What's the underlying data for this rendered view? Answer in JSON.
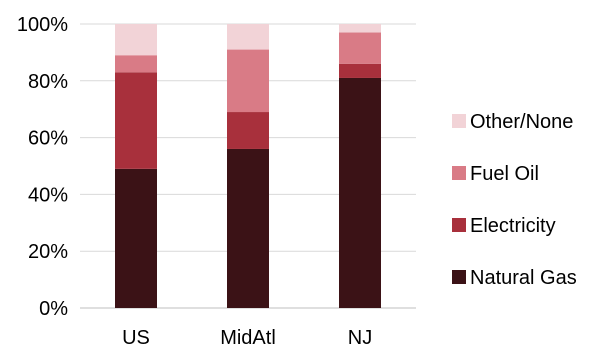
{
  "chart_data": {
    "type": "bar",
    "stacked": true,
    "categories": [
      "US",
      "MidAtl",
      "NJ"
    ],
    "series": [
      {
        "name": "Natural Gas",
        "values": [
          49,
          56,
          81
        ],
        "color": "#3b1216"
      },
      {
        "name": "Electricity",
        "values": [
          34,
          13,
          5
        ],
        "color": "#a8303c"
      },
      {
        "name": "Fuel Oil",
        "values": [
          6,
          22,
          11
        ],
        "color": "#d97b86"
      },
      {
        "name": "Other/None",
        "values": [
          11,
          9,
          3
        ],
        "color": "#f2d3d7"
      }
    ],
    "y_ticks": [
      "0%",
      "20%",
      "40%",
      "60%",
      "80%",
      "100%"
    ],
    "ylim": [
      0,
      100
    ],
    "grid": true,
    "legend": "right",
    "legend_order": [
      "Other/None",
      "Fuel Oil",
      "Electricity",
      "Natural Gas"
    ]
  }
}
